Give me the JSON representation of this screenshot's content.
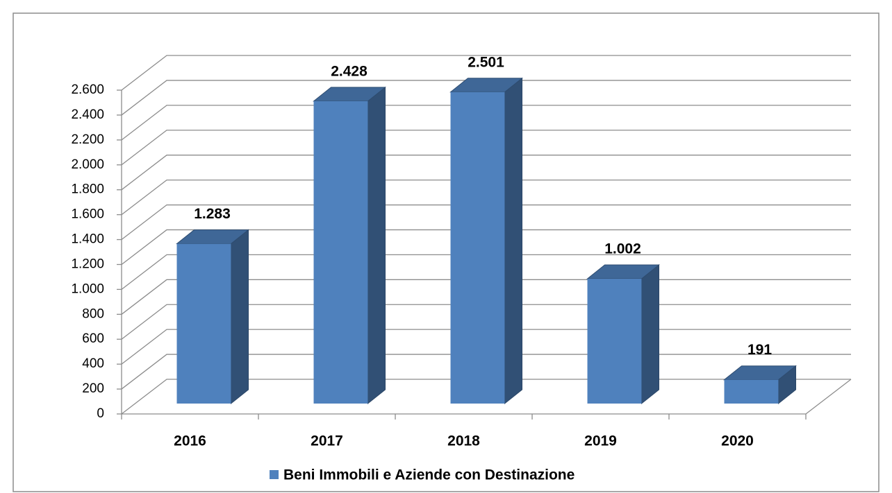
{
  "chart_data": {
    "type": "bar3d",
    "categories": [
      "2016",
      "2017",
      "2018",
      "2019",
      "2020"
    ],
    "series": [
      {
        "name": "Beni Immobili e Aziende con Destinazione",
        "color": "#4f81bd",
        "values": [
          1283,
          2428,
          2501,
          1002,
          191
        ],
        "value_labels": [
          "1.283",
          "2.428",
          "2.501",
          "1.002",
          "191"
        ]
      }
    ],
    "ylim": [
      0,
      2600
    ],
    "yticks": [
      0,
      200,
      400,
      600,
      800,
      {
        "value": 1000,
        "label": "1.000"
      },
      {
        "value": 1200,
        "label": "1.200"
      },
      {
        "value": 1400,
        "label": "1.400"
      },
      {
        "value": 1600,
        "label": "1.600"
      },
      {
        "value": 1800,
        "label": "1.800"
      },
      {
        "value": 2000,
        "label": "2.000"
      },
      {
        "value": 2200,
        "label": "2.200"
      },
      {
        "value": 2400,
        "label": "2.400"
      },
      {
        "value": 2600,
        "label": "2.600"
      }
    ],
    "grid": true,
    "legend": "bottom"
  }
}
